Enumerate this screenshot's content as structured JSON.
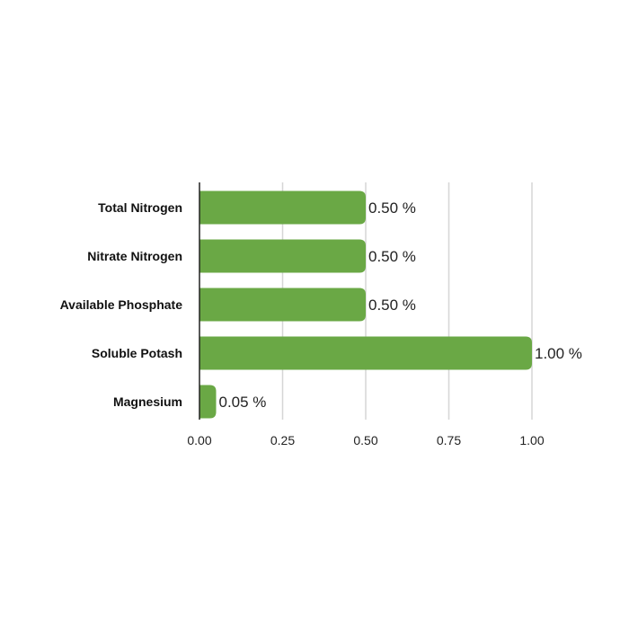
{
  "chart_data": {
    "type": "bar",
    "orientation": "horizontal",
    "categories": [
      "Total Nitrogen",
      "Nitrate Nitrogen",
      "Available Phosphate",
      "Soluble Potash",
      "Magnesium"
    ],
    "values": [
      0.5,
      0.5,
      0.5,
      1.0,
      0.05
    ],
    "data_labels": [
      "0.50 %",
      "0.50 %",
      "0.50 %",
      "1.00 %",
      "0.05 %"
    ],
    "x_ticks": [
      "0.00",
      "0.25",
      "0.50",
      "0.75",
      "1.00"
    ],
    "xlim": [
      0,
      1
    ],
    "grid": "vertical",
    "bar_color": "#6aa845",
    "title": "",
    "xlabel": "",
    "ylabel": ""
  }
}
